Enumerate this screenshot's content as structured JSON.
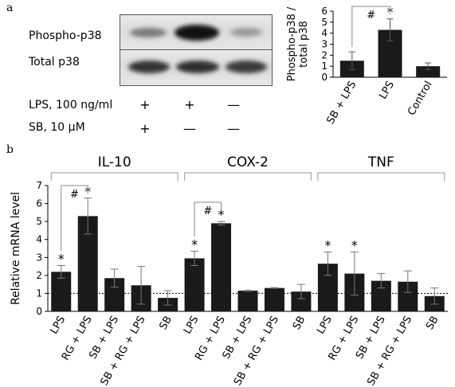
{
  "panel_a": {
    "letter": "a",
    "blot": {
      "rows": [
        "Phospho-p38",
        "Total p38"
      ],
      "treatments": [
        {
          "label": "LPS, 100 ng/ml",
          "marks": [
            "+",
            "+",
            "—"
          ]
        },
        {
          "label": "SB, 10 μM",
          "marks": [
            "+",
            "—",
            "—"
          ]
        }
      ]
    }
  },
  "panel_b": {
    "letter": "b"
  },
  "chart_data": [
    {
      "type": "bar",
      "categories": [
        "SB + LPS",
        "LPS",
        "Control"
      ],
      "values": [
        1.5,
        4.3,
        1.0
      ],
      "errors": [
        0.8,
        1.0,
        0.3
      ],
      "ylabel": "Phospho-p38 / total p38",
      "ylim": [
        0,
        6
      ],
      "yticks": [
        "0",
        "1",
        "2",
        "3",
        "4",
        "5",
        "6"
      ],
      "annotations": [
        {
          "text": "*",
          "category": "LPS"
        },
        {
          "text": "#",
          "bracket": [
            "SB + LPS",
            "LPS"
          ]
        }
      ],
      "bar_color": "#1a1a1a"
    },
    {
      "type": "bar",
      "groups": [
        "IL-10",
        "COX-2",
        "TNF"
      ],
      "categories": [
        "LPS",
        "RG + LPS",
        "SB + LPS",
        "SB + RG + LPS",
        "SB",
        "LPS",
        "RG + LPS",
        "SB + LPS",
        "SB + RG + LPS",
        "SB",
        "LPS",
        "RG + LPS",
        "SB + LPS",
        "SB + RG + LPS",
        "SB"
      ],
      "values": [
        2.2,
        5.3,
        1.85,
        1.45,
        0.75,
        2.95,
        4.9,
        1.15,
        1.3,
        1.1,
        2.65,
        2.1,
        1.7,
        1.65,
        0.85
      ],
      "errors": [
        0.35,
        1.0,
        0.5,
        1.05,
        0.4,
        0.4,
        0.1,
        0.03,
        0.02,
        0.4,
        0.65,
        1.2,
        0.4,
        0.6,
        0.45
      ],
      "ylabel": "Relative mRNA level",
      "ylim": [
        0,
        7
      ],
      "yticks": [
        "0",
        "1",
        "2",
        "3",
        "4",
        "5",
        "6",
        "7"
      ],
      "reference_line": 1,
      "annotations": [
        {
          "text": "*",
          "categories_index": [
            0,
            1,
            5,
            6,
            10,
            11
          ]
        },
        {
          "text": "#",
          "bracket_index": [
            [
              0,
              1
            ],
            [
              5,
              6
            ]
          ]
        }
      ],
      "bar_color": "#1a1a1a"
    }
  ]
}
